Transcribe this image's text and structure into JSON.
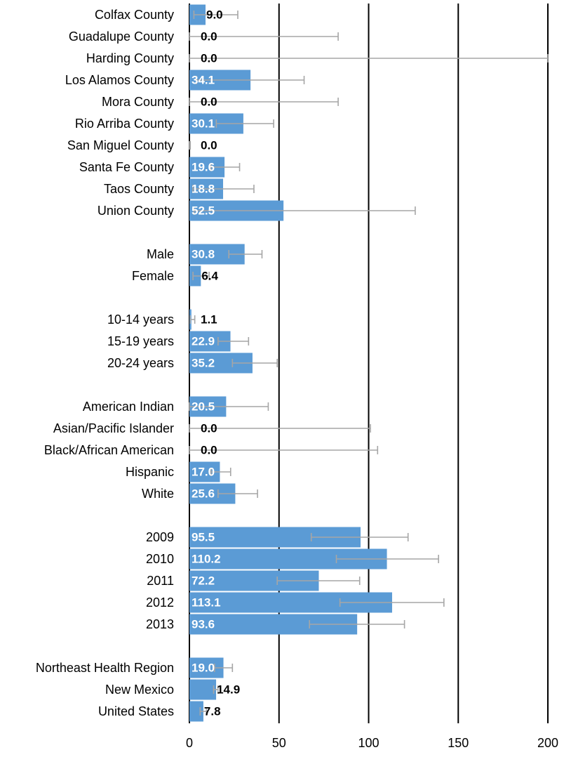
{
  "chart_data": {
    "type": "bar",
    "orientation": "horizontal",
    "title": "",
    "xlabel": "",
    "ylabel": "",
    "xlim": [
      0,
      200
    ],
    "x_ticks": [
      "0",
      "50",
      "100",
      "150",
      "200"
    ],
    "grid": true,
    "legend": "none",
    "categories": [
      "Colfax County",
      "Guadalupe County",
      "Harding County",
      "Los Alamos County",
      "Mora County",
      "Rio Arriba County",
      "San Miguel County",
      "Santa Fe County",
      "Taos County",
      "Union County",
      "Male",
      "Female",
      "10-14 years",
      "15-19 years",
      "20-24 years",
      "American Indian",
      "Asian/Pacific Islander",
      "Black/African American",
      "Hispanic",
      "White",
      "2009",
      "2010",
      "2011",
      "2012",
      "2013",
      "Northeast Health Region",
      "New Mexico",
      "United States"
    ],
    "groups": [
      [
        "Colfax County",
        "Guadalupe County",
        "Harding County",
        "Los Alamos County",
        "Mora County",
        "Rio Arriba County",
        "San Miguel County",
        "Santa Fe County",
        "Taos County",
        "Union County"
      ],
      [
        "Male",
        "Female"
      ],
      [
        "10-14 years",
        "15-19 years",
        "20-24 years"
      ],
      [
        "American Indian",
        "Asian/Pacific Islander",
        "Black/African American",
        "Hispanic",
        "White"
      ],
      [
        "2009",
        "2010",
        "2011",
        "2012",
        "2013"
      ],
      [
        "Northeast Health Region",
        "New Mexico",
        "United States"
      ]
    ],
    "values": [
      9.0,
      0.0,
      0.0,
      34.1,
      0.0,
      30.1,
      0.0,
      19.6,
      18.8,
      52.5,
      30.8,
      6.4,
      1.1,
      22.9,
      35.2,
      20.5,
      0.0,
      0.0,
      17.0,
      25.6,
      95.5,
      110.2,
      72.2,
      113.1,
      93.6,
      19.0,
      14.9,
      7.8
    ],
    "labels": [
      "9.0",
      "0.0",
      "0.0",
      "34.1",
      "0.0",
      "30.1",
      "0.0",
      "19.6",
      "18.8",
      "52.5",
      "30.8",
      "6.4",
      "1.1",
      "22.9",
      "35.2",
      "20.5",
      "0.0",
      "0.0",
      "17.0",
      "25.6",
      "95.5",
      "110.2",
      "72.2",
      "113.1",
      "93.6",
      "19.0",
      "14.9",
      "7.8"
    ],
    "error_low": [
      2.5,
      0.0,
      0.0,
      4.0,
      0.0,
      15.0,
      0.0,
      12.0,
      2.0,
      2.5,
      22.0,
      2.0,
      0.5,
      16.0,
      24.0,
      0.0,
      0.0,
      0.0,
      12.0,
      16.0,
      68.0,
      82.0,
      49.0,
      84.0,
      67.0,
      14.0,
      13.5,
      6.0
    ],
    "error_high": [
      27.0,
      83.0,
      200.0,
      64.0,
      83.0,
      47.0,
      0.5,
      28.0,
      36.0,
      126.0,
      40.5,
      11.0,
      3.0,
      33.0,
      49.0,
      44.0,
      101.0,
      105.0,
      23.0,
      38.0,
      122.0,
      139.0,
      95.0,
      142.0,
      120.0,
      24.0,
      16.0,
      9.5
    ],
    "colors": {
      "bar": "#5b9bd5",
      "error_bar": "#a6a6a6",
      "gridline": "#000000",
      "label_inside": "#ffffff",
      "label_outside": "#000000"
    }
  }
}
